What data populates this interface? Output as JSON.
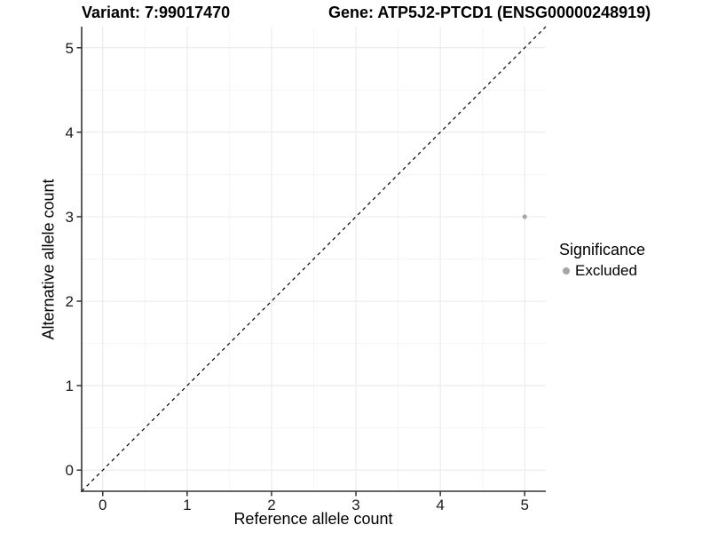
{
  "header": {
    "variant_title": "Variant: 7:99017470",
    "gene_title": "Gene: ATP5J2-PTCD1 (ENSG00000248919)"
  },
  "chart_data": {
    "type": "scatter",
    "title_left": "Variant: 7:99017470",
    "title_right": "Gene: ATP5J2-PTCD1 (ENSG00000248919)",
    "xlabel": "Reference allele count",
    "ylabel": "Alternative allele count",
    "xlim": [
      -0.25,
      5.25
    ],
    "ylim": [
      -0.25,
      5.25
    ],
    "x_ticks": [
      0,
      1,
      2,
      3,
      4,
      5
    ],
    "y_ticks": [
      0,
      1,
      2,
      3,
      4,
      5
    ],
    "grid": {
      "major": true,
      "minor": true
    },
    "points": [
      {
        "x": 5,
        "y": 3,
        "series": "Excluded"
      }
    ],
    "reference_line": {
      "type": "identity",
      "style": "dashed"
    },
    "legend": {
      "title": "Significance",
      "position": "right",
      "items": [
        {
          "label": "Excluded",
          "color": "#a6a6a6"
        }
      ]
    },
    "colors": {
      "point": "#a6a6a6",
      "grid_major": "#ececec",
      "grid_minor": "#f5f5f5",
      "axis_line": "#333333",
      "dashed_line": "#000000",
      "tick_text": "#1a1a1a",
      "text": "#000000"
    }
  }
}
